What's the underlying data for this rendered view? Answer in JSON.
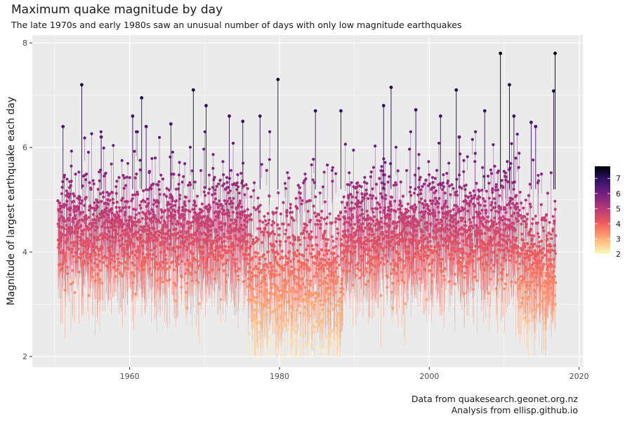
{
  "chart_data": {
    "type": "scatter",
    "title": "Maximum quake magnitude by day",
    "subtitle": "The late 1970s and early 1980s saw an unusual number of days with only low magnitude earthquakes",
    "ylabel": "Magnitude of largest earthquake each day",
    "xlabel": "",
    "xlim": [
      1947,
      2020.5
    ],
    "ylim": [
      1.8,
      8.15
    ],
    "x_ticks": [
      1960,
      1980,
      2000,
      2020
    ],
    "y_ticks": [
      2,
      4,
      6,
      8
    ],
    "grid": true,
    "legend": {
      "position": "right",
      "ticks": [
        2,
        3,
        4,
        5,
        6,
        7
      ],
      "range": [
        2,
        7.8
      ]
    },
    "highlights": [
      {
        "x": 1953.6,
        "y": 7.2
      },
      {
        "x": 1961.6,
        "y": 6.95
      },
      {
        "x": 1968.5,
        "y": 7.1
      },
      {
        "x": 1970.2,
        "y": 6.8
      },
      {
        "x": 1979.8,
        "y": 7.3
      },
      {
        "x": 1994.9,
        "y": 7.15
      },
      {
        "x": 2003.6,
        "y": 7.1
      },
      {
        "x": 2009.5,
        "y": 7.8
      },
      {
        "x": 2010.7,
        "y": 7.2
      },
      {
        "x": 2016.8,
        "y": 7.8
      },
      {
        "x": 2016.6,
        "y": 7.08
      },
      {
        "x": 1951.1,
        "y": 6.4
      },
      {
        "x": 1956.2,
        "y": 6.2
      },
      {
        "x": 1960.4,
        "y": 6.6
      },
      {
        "x": 1962.2,
        "y": 6.4
      },
      {
        "x": 1965.5,
        "y": 6.45
      },
      {
        "x": 1973.3,
        "y": 6.6
      },
      {
        "x": 1975.1,
        "y": 6.5
      },
      {
        "x": 1977.4,
        "y": 6.6
      },
      {
        "x": 1984.8,
        "y": 6.7
      },
      {
        "x": 1988.2,
        "y": 6.7
      },
      {
        "x": 1993.9,
        "y": 6.8
      },
      {
        "x": 1998.2,
        "y": 6.72
      },
      {
        "x": 2001.5,
        "y": 6.6
      },
      {
        "x": 2004.0,
        "y": 6.2
      },
      {
        "x": 2007.4,
        "y": 6.7
      },
      {
        "x": 2011.3,
        "y": 6.6
      },
      {
        "x": 2013.6,
        "y": 6.48
      },
      {
        "x": 2014.2,
        "y": 6.4
      }
    ]
  },
  "caption": {
    "line1": "Data from quakesearch.geonet.org.nz",
    "line2": "Analysis from ellisp.github.io"
  },
  "colors": {
    "panel_bg": "#ebebeb",
    "grid": "#ffffff",
    "palette": [
      "#fcfdbf",
      "#feb078",
      "#f1605d",
      "#b73779",
      "#721f81",
      "#2c115f",
      "#000004"
    ]
  }
}
